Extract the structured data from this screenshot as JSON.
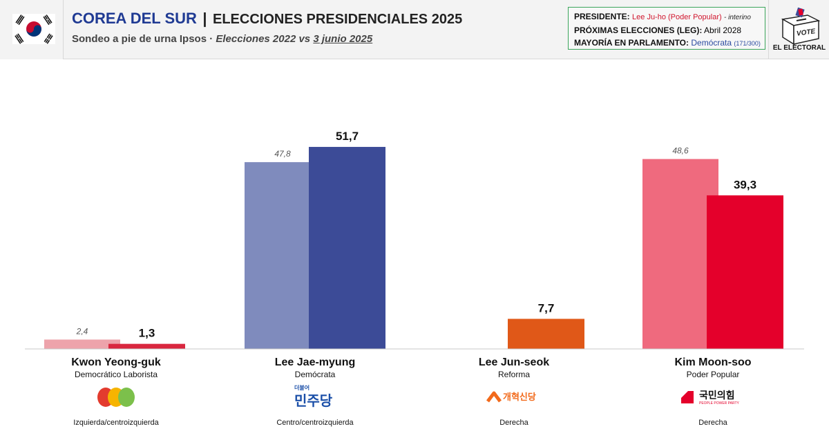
{
  "header": {
    "country": "COREA DEL SUR",
    "separator": "|",
    "title": "ELECCIONES PRESIDENCIALES 2025",
    "subtitle_prefix": "Sondeo a pie de urna Ipsos · ",
    "subtitle_italic": "Elecciones 2022 vs ",
    "subtitle_date": "3 junio 2025"
  },
  "info": {
    "president_key": "PRESIDENTE:",
    "president_value": "Lee Ju-ho (Poder Popular)",
    "president_note": "- interino",
    "next_key": "PRÓXIMAS ELECCIONES (LEG):",
    "next_value": "Abril 2028",
    "majority_key": "MAYORÍA EN PARLAMENTO:",
    "majority_value": "Demócrata",
    "majority_seats": "(171/300)"
  },
  "brand": {
    "name": "EL ELECTORAL",
    "ballot_text": "VOTE"
  },
  "colors": {
    "kwon_old": "#eda3ab",
    "kwon_new": "#d9273f",
    "lee_jm_old": "#7f8bbd",
    "lee_jm_new": "#3c4b97",
    "lee_js_new": "#e05818",
    "kim_old": "#ef6a7e",
    "kim_new": "#e4002b"
  },
  "chart_data": {
    "type": "bar",
    "categories": [
      "Kwon Yeong-guk",
      "Lee Jae-myung",
      "Lee Jun-seok",
      "Kim Moon-soo"
    ],
    "series": [
      {
        "values": [
          2.4,
          47.8,
          null,
          48.6
        ],
        "labels": [
          "2,4",
          "47,8",
          "",
          "48,6"
        ]
      },
      {
        "values": [
          1.3,
          51.7,
          7.7,
          39.3
        ],
        "labels": [
          "1,3",
          "51,7",
          "7,7",
          "39,3"
        ]
      }
    ],
    "ylim": [
      0,
      60
    ]
  },
  "candidates": [
    {
      "name": "Kwon Yeong-guk",
      "party": "Democrático Laborista",
      "ideology": "Izquierda/centroizquierda",
      "logo_icon": "three-circles-logo"
    },
    {
      "name": "Lee Jae-myung",
      "party": "Demócrata",
      "ideology": "Centro/centroizquierda",
      "logo_icon": "democratic-party-logo",
      "logo_text": "민주당",
      "logo_small": "더불어"
    },
    {
      "name": "Lee Jun-seok",
      "party": "Reforma",
      "ideology": "Derecha",
      "logo_icon": "reform-party-logo",
      "logo_text": "개혁신당"
    },
    {
      "name": "Kim Moon-soo",
      "party": "Poder Popular",
      "ideology": "Derecha",
      "logo_icon": "people-power-logo",
      "logo_text": "국민의힘",
      "logo_small": "PEOPLE POWER PARTY"
    }
  ]
}
